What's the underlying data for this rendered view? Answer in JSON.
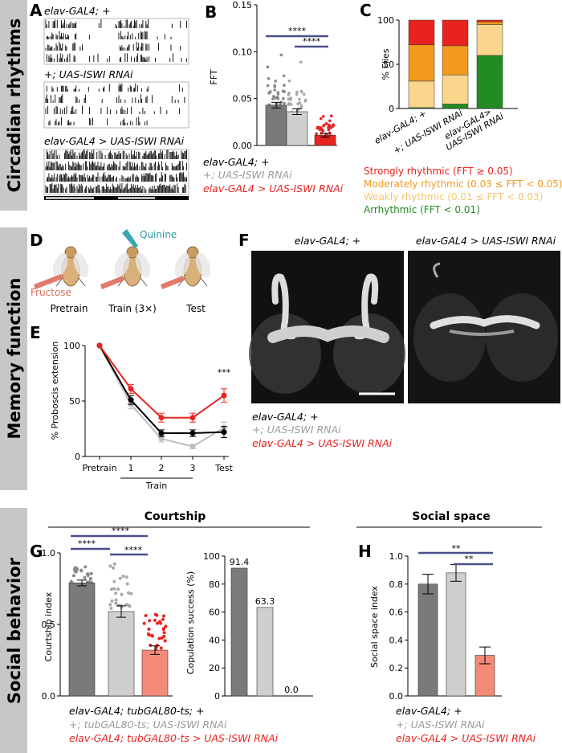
{
  "sections": {
    "circadian": "Circadian rhythms",
    "memory": "Memory function",
    "social": "Social behavior"
  },
  "panel_labels": {
    "A": "A",
    "B": "B",
    "C": "C",
    "D": "D",
    "E": "E",
    "F": "F",
    "G": "G",
    "H": "H"
  },
  "colors": {
    "dark_gray": "#7a7a7a",
    "light_gray": "#cfcfcf",
    "red": "#e8231f",
    "light_red": "#f48a78",
    "navy": "#4a4f8c",
    "strong": "#e8231f",
    "moderate": "#f39a1c",
    "weak": "#fad58c",
    "arrhythmic": "#228b22",
    "section_bg": "#c7c7c7"
  },
  "panelA": {
    "labels": [
      "elav-GAL4; +",
      "+; UAS-ISWI RNAi",
      "elav-GAL4 > UAS-ISWI RNAi"
    ]
  },
  "panelB": {
    "ylabel": "FFT",
    "sig1": "****",
    "sig2": "****"
  },
  "panelC": {
    "ylabel": "% Flies",
    "categories": [
      "elav-GAL4; +",
      "+; UAS-ISWI RNAi",
      "elav-GAL4>\nUAS-ISWI RNAi"
    ]
  },
  "legend_genotypes_B": {
    "g1": "elav-GAL4; +",
    "g2": "+; UAS-ISWI RNAi",
    "g3": "elav-GAL4 > UAS-ISWI RNAi"
  },
  "legend_rhythm": {
    "strong": "Strongly rhythmic (FFT ≥ 0.05)",
    "moderate": "Moderately rhythmic (0.03 ≤ FFT < 0.05)",
    "weak": "Weakly rhythmic (0.01 ≤ FFT < 0.03)",
    "arrhythmic": "Arrhythmic (FFT < 0.01)"
  },
  "panelD": {
    "quinine": "Quinine",
    "fructose": "Fructose",
    "steps": [
      "Pretrain",
      "Train (3×)",
      "Test"
    ]
  },
  "panelE": {
    "ylabel": "% Proboscis extension",
    "sig": "***",
    "train_label": "Train"
  },
  "panelF": {
    "left_title": "elav-GAL4; +",
    "right_title": "elav-GAL4 > UAS-ISWI RNAi"
  },
  "legend_genotypes_E": {
    "g1": "elav-GAL4; +",
    "g2": "+; UAS-ISWI RNAi",
    "g3": "elav-GAL4 > UAS-ISWI RNAi"
  },
  "courtship_header": "Courtship",
  "social_header": "Social space",
  "panelG": {
    "ylabel": "Courtship index",
    "ylabel2": "Copulation success (%)",
    "sig1": "****",
    "sig2": "****",
    "sig3": "****"
  },
  "panelH": {
    "ylabel": "Social space index",
    "sig1": "**",
    "sig2": "**"
  },
  "legend_genotypes_G": {
    "g1": "elav-GAL4; tubGAL80-ts; +",
    "g2": "+; tubGAL80-ts; UAS-ISWI RNAi",
    "g3": "elav-GAL4; tubGAL80-ts > UAS-ISWI RNAi"
  },
  "legend_genotypes_H": {
    "g1": "elav-GAL4; +",
    "g2": "+; UAS-ISWI RNAi",
    "g3": "elav-GAL4 > UAS-ISWI RNAi"
  },
  "chart_data": [
    {
      "id": "B",
      "type": "bar",
      "title": "",
      "xlabel": "",
      "ylabel": "FFT",
      "categories": [
        "elav-GAL4; +",
        "+; UAS-ISWI RNAi",
        "elav-GAL4 > UAS-ISWI RNAi"
      ],
      "values": [
        0.043,
        0.036,
        0.011
      ],
      "errors": [
        0.003,
        0.003,
        0.002
      ],
      "ylim": [
        0,
        0.15
      ],
      "yticks": [
        "0.00",
        "0.05",
        "0.10",
        "0.15"
      ]
    },
    {
      "id": "C",
      "type": "bar",
      "ylabel": "% Flies",
      "stacked": true,
      "categories": [
        "elav-GAL4; +",
        "+; UAS-ISWI RNAi",
        "elav-GAL4>\nUAS-ISWI RNAi"
      ],
      "series": [
        {
          "name": "Arrhythmic (FFT < 0.01)",
          "values": [
            1,
            5,
            60
          ]
        },
        {
          "name": "Weakly rhythmic (0.01 ≤ FFT < 0.03)",
          "values": [
            30,
            33,
            35
          ]
        },
        {
          "name": "Moderately rhythmic (0.03 ≤ FFT < 0.05)",
          "values": [
            41,
            33,
            3
          ]
        },
        {
          "name": "Strongly rhythmic (FFT ≥ 0.05)",
          "values": [
            28,
            29,
            2
          ]
        }
      ],
      "ylim": [
        0,
        100
      ],
      "yticks": [
        "0",
        "50",
        "100"
      ]
    },
    {
      "id": "E",
      "type": "line",
      "ylabel": "% Proboscis extension",
      "categories": [
        "Pretrain",
        "1",
        "2",
        "3",
        "Test"
      ],
      "series": [
        {
          "name": "elav-GAL4; +",
          "values": [
            100,
            51,
            21,
            21,
            22
          ],
          "errors": [
            0,
            4,
            3,
            3,
            5
          ]
        },
        {
          "name": "+; UAS-ISWI RNAi",
          "values": [
            100,
            47,
            16,
            9,
            26
          ],
          "errors": [
            0,
            4,
            3,
            2,
            5
          ]
        },
        {
          "name": "elav-GAL4 > UAS-ISWI RNAi",
          "values": [
            100,
            61,
            35,
            35,
            55
          ],
          "errors": [
            0,
            4,
            4,
            4,
            6
          ]
        }
      ],
      "ylim": [
        0,
        100
      ],
      "yticks": [
        "0",
        "50",
        "100"
      ]
    },
    {
      "id": "G1",
      "type": "bar",
      "ylabel": "Courtship index",
      "categories": [
        "elav-GAL4; tubGAL80-ts; +",
        "+; tubGAL80-ts; UAS-ISWI RNAi",
        "elav-GAL4; tubGAL80-ts > UAS-ISWI RNAi"
      ],
      "values": [
        0.79,
        0.59,
        0.32
      ],
      "errors": [
        0.02,
        0.04,
        0.03
      ],
      "ylim": [
        0,
        1.0
      ],
      "yticks": [
        "0.0",
        "0.5",
        "1.0"
      ]
    },
    {
      "id": "G2",
      "type": "bar",
      "ylabel": "Copulation success (%)",
      "categories": [
        "elav-GAL4; tubGAL80-ts; +",
        "+; tubGAL80-ts; UAS-ISWI RNAi",
        "elav-GAL4; tubGAL80-ts > UAS-ISWI RNAi"
      ],
      "values": [
        91.4,
        63.3,
        0.0
      ],
      "value_labels": [
        "91.4",
        "63.3",
        "0.0"
      ],
      "ylim": [
        0,
        100
      ],
      "yticks": [
        "0",
        "20",
        "40",
        "60",
        "80",
        "100"
      ]
    },
    {
      "id": "H",
      "type": "bar",
      "ylabel": "Social space index",
      "categories": [
        "elav-GAL4; +",
        "+; UAS-ISWI RNAi",
        "elav-GAL4 > UAS-ISWI RNAi"
      ],
      "values": [
        0.8,
        0.88,
        0.29
      ],
      "errors": [
        0.07,
        0.06,
        0.06
      ],
      "ylim": [
        0,
        1.0
      ],
      "yticks": [
        "0.0",
        "0.2",
        "0.4",
        "0.6",
        "0.8",
        "1.0"
      ]
    }
  ]
}
